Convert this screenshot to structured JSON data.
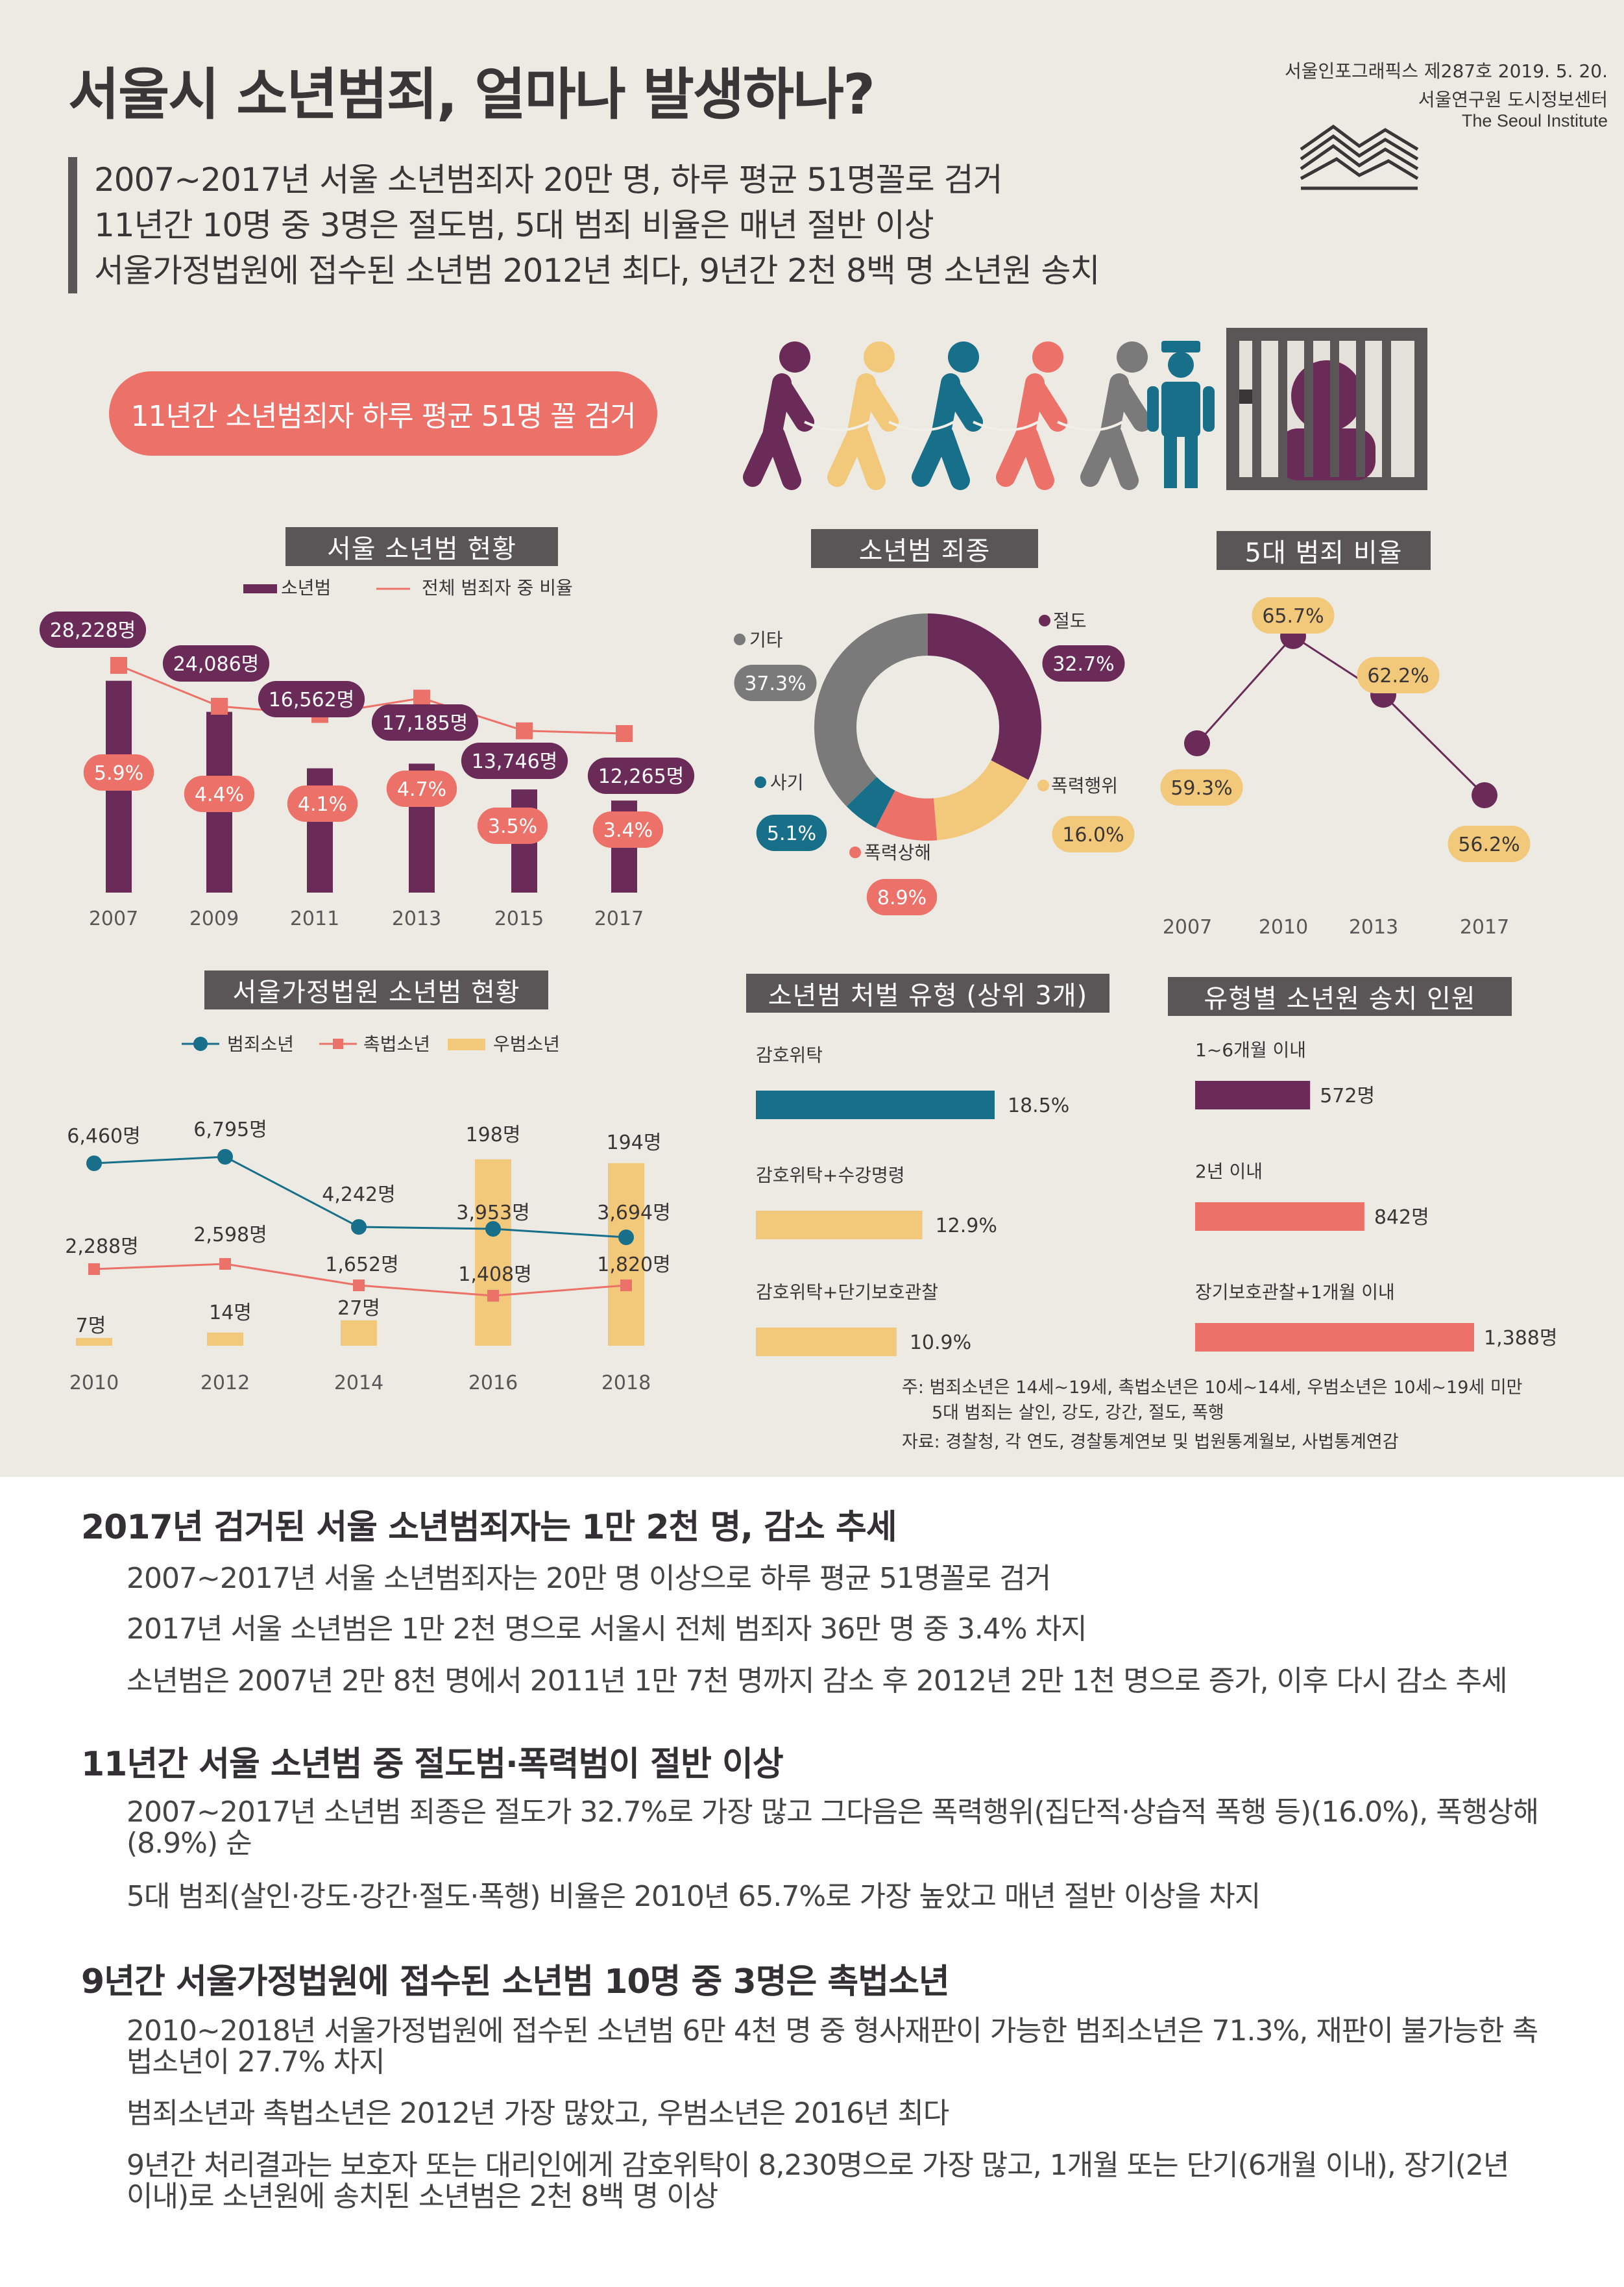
{
  "header": {
    "title": "서울시 소년범죄, 얼마나 발생하나?",
    "pub_line": "서울인포그래픽스 제287호 2019. 5. 20.",
    "institute_ko": "서울연구원 도시정보센터",
    "institute_en": "The Seoul Institute",
    "subtitles": [
      "2007~2017년 서울 소년범죄자 20만 명, 하루 평균 51명꼴로 검거",
      "11년간 10명 중 3명은 절도범, 5대 범죄 비율은 매년 절반 이상",
      "서울가정법원에 접수된 소년범 2012년 최다, 9년간 2천 8백 명 소년원 송치"
    ],
    "pill": "11년간 소년범죄자 하루 평균 51명 꼴 검거"
  },
  "colors": {
    "purple": "#6b2b59",
    "salmon": "#ec7168",
    "yellow": "#f2c97a",
    "teal": "#176f8a",
    "gray": "#7a7a7a",
    "dark": "#5a5658",
    "bg": "#eceae3"
  },
  "chart_data": [
    {
      "id": "juvenile-status",
      "type": "bar",
      "title": "서울 소년범 현황",
      "legend": [
        "소년범",
        "전체 범죄자 중 비율"
      ],
      "categories": [
        "2007",
        "2009",
        "2011",
        "2013",
        "2015",
        "2017"
      ],
      "series": [
        {
          "name": "소년범",
          "values": [
            28228,
            24086,
            16562,
            17185,
            13746,
            12265
          ],
          "labels": [
            "28,228명",
            "24,086명",
            "16,562명",
            "17,185명",
            "13,746명",
            "12,265명"
          ]
        },
        {
          "name": "전체 범죄자 중 비율",
          "values": [
            5.9,
            4.4,
            4.1,
            4.7,
            3.5,
            3.4
          ],
          "labels": [
            "5.9%",
            "4.4%",
            "4.1%",
            "4.7%",
            "3.5%",
            "3.4%"
          ]
        }
      ]
    },
    {
      "id": "crime-types",
      "type": "pie",
      "title": "소년범 죄종",
      "slices": [
        {
          "label": "절도",
          "value": 32.7,
          "text": "32.7%"
        },
        {
          "label": "폭력행위",
          "value": 16.0,
          "text": "16.0%"
        },
        {
          "label": "폭력상해",
          "value": 8.9,
          "text": "8.9%"
        },
        {
          "label": "사기",
          "value": 5.1,
          "text": "5.1%"
        },
        {
          "label": "기타",
          "value": 37.3,
          "text": "37.3%"
        }
      ]
    },
    {
      "id": "top5-ratio",
      "type": "line",
      "title": "5대 범죄 비율",
      "categories": [
        "2007",
        "2010",
        "2013",
        "2017"
      ],
      "values": [
        59.3,
        65.7,
        62.2,
        56.2
      ],
      "labels": [
        "59.3%",
        "65.7%",
        "62.2%",
        "56.2%"
      ]
    },
    {
      "id": "family-court",
      "type": "line",
      "title": "서울가정법원 소년범 현황",
      "legend": [
        "범죄소년",
        "촉법소년",
        "우범소년"
      ],
      "categories": [
        "2010",
        "2012",
        "2014",
        "2016",
        "2018"
      ],
      "series": [
        {
          "name": "범죄소년",
          "values": [
            6460,
            6795,
            4242,
            3953,
            3694
          ],
          "labels": [
            "6,460명",
            "6,795명",
            "4,242명",
            "3,953명",
            "3,694명"
          ]
        },
        {
          "name": "촉법소년",
          "values": [
            2288,
            2598,
            1652,
            1408,
            1820
          ],
          "labels": [
            "2,288명",
            "2,598명",
            "1,652명",
            "1,408명",
            "1,820명"
          ]
        },
        {
          "name": "우범소년",
          "values": [
            7,
            14,
            27,
            198,
            194
          ],
          "labels": [
            "7명",
            "14명",
            "27명",
            "198명",
            "194명"
          ]
        }
      ]
    },
    {
      "id": "disposition",
      "type": "bar",
      "title": "소년범 처벌 유형 (상위 3개)",
      "categories": [
        "감호위탁",
        "감호위탁+수강명령",
        "감호위탁+단기보호관찰"
      ],
      "values": [
        18.5,
        12.9,
        10.9
      ],
      "labels": [
        "18.5%",
        "12.9%",
        "10.9%"
      ]
    },
    {
      "id": "detention",
      "type": "bar",
      "title": "유형별 소년원 송치 인원",
      "categories": [
        "1~6개월 이내",
        "2년 이내",
        "장기보호관찰+1개월 이내"
      ],
      "values": [
        572,
        842,
        1388
      ],
      "labels": [
        "572명",
        "842명",
        "1,388명"
      ]
    }
  ],
  "notes": {
    "line1": "주: 범죄소년은 14세~19세, 촉법소년은 10세~14세, 우범소년은 10세~19세 미만",
    "line2": "5대 범죄는 살인, 강도, 강간, 절도, 폭행",
    "line3": "자료: 경찰청, 각 연도, 경찰통계연보 및 법원통계월보, 사법통계연감"
  },
  "lower": {
    "h1": "2017년 검거된 서울 소년범죄자는 1만 2천 명, 감소 추세",
    "p1": "2007~2017년 서울 소년범죄자는 20만 명 이상으로 하루 평균 51명꼴로 검거",
    "p2": "2017년 서울 소년범은 1만 2천 명으로 서울시 전체 범죄자 36만 명 중 3.4% 차지",
    "p3": "소년범은 2007년 2만 8천 명에서 2011년 1만 7천 명까지 감소 후 2012년 2만 1천 명으로 증가, 이후 다시 감소 추세",
    "h2": "11년간 서울 소년범 중 절도범·폭력범이 절반 이상",
    "p4": "2007~2017년 소년범 죄종은 절도가 32.7%로 가장 많고 그다음은 폭력행위(집단적·상습적 폭행 등)(16.0%), 폭행상해 (8.9%) 순",
    "p5": "5대 범죄(살인·강도·강간·절도·폭행) 비율은 2010년 65.7%로 가장 높았고 매년 절반 이상을 차지",
    "h3": "9년간 서울가정법원에 접수된 소년범 10명 중 3명은 촉법소년",
    "p6": "2010~2018년 서울가정법원에 접수된 소년범 6만 4천 명 중 형사재판이 가능한 범죄소년은 71.3%, 재판이 불가능한 촉법소년이 27.7% 차지",
    "p7": "범죄소년과 촉법소년은 2012년 가장 많았고, 우범소년은 2016년 최다",
    "p8": "9년간 처리결과는 보호자 또는 대리인에게 감호위탁이 8,230명으로 가장 많고, 1개월 또는 단기(6개월 이내), 장기(2년 이내)로 소년원에 송치된 소년범은 2천 8백 명 이상"
  }
}
